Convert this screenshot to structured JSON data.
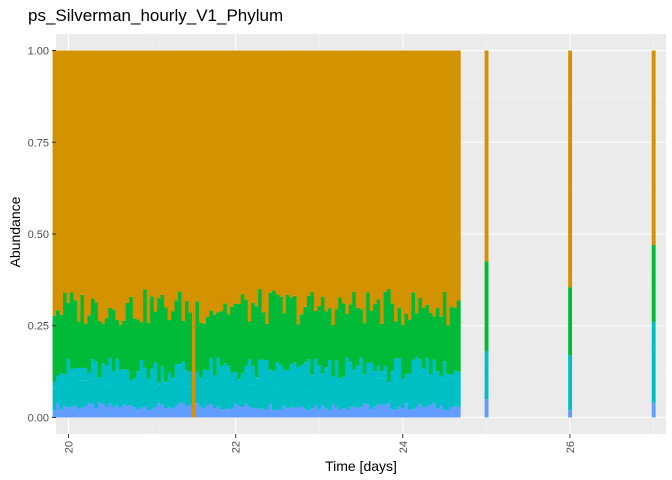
{
  "chart_data": {
    "type": "bar",
    "stacked": true,
    "title": "ps_Silverman_hourly_V1_Phylum",
    "xlabel": "Time [days]",
    "ylabel": "Abundance",
    "xlim": [
      19.85,
      27.15
    ],
    "ylim": [
      0,
      1
    ],
    "x_ticks": [
      20,
      22,
      24,
      26
    ],
    "y_ticks": [
      0,
      0.25,
      0.5,
      0.75,
      1.0
    ],
    "y_tick_labels": [
      "0.00",
      "0.25",
      "0.50",
      "0.75",
      "1.00"
    ],
    "x_tick_rotation": 90,
    "grid": true,
    "legend": "none",
    "bar_width_days": 0.0417,
    "series_colors": [
      "#619CFF",
      "#00BFC4",
      "#00BA38",
      "#D39200"
    ],
    "gaps": [
      [
        22.84,
        22.87
      ],
      [
        23.42,
        23.45
      ]
    ],
    "dense_series": {
      "x_start": 19.83,
      "x_step": 0.0417,
      "count": 117,
      "cumulative_levels": [
        {
          "mean": 0.03,
          "amp": 0.01
        },
        {
          "mean": 0.1,
          "amp": 0.03
        },
        {
          "mean": 0.13,
          "amp": 0.035
        },
        {
          "mean": 0.3,
          "amp": 0.05
        }
      ],
      "overrides": [
        {
          "x": 21.5,
          "cumulative": [
            0.0,
            0.0,
            0.0,
            0.0
          ]
        }
      ]
    },
    "sparse_points": [
      {
        "x": 25.0,
        "cumulative": [
          0.05,
          0.18,
          0.18,
          0.425
        ]
      },
      {
        "x": 26.0,
        "cumulative": [
          0.02,
          0.15,
          0.17,
          0.355
        ]
      },
      {
        "x": 27.0,
        "cumulative": [
          0.04,
          0.18,
          0.26,
          0.47
        ]
      }
    ]
  }
}
